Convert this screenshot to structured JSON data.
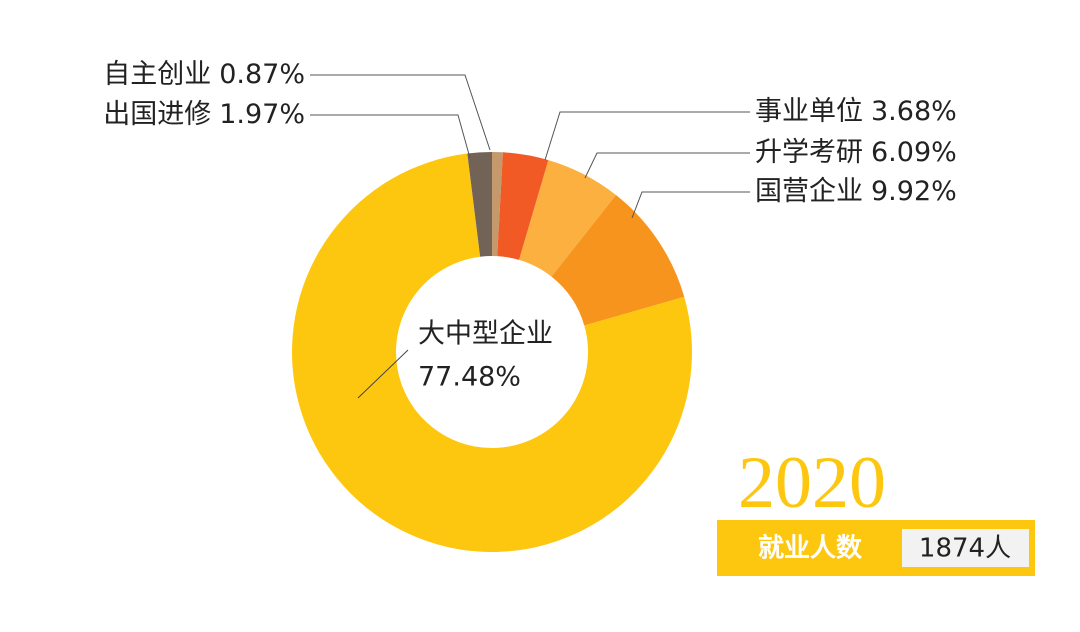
{
  "chart_data": {
    "type": "donut",
    "categories": [
      "自主创业",
      "事业单位",
      "升学考研",
      "国营企业",
      "大中型企业",
      "出国进修"
    ],
    "values": [
      0.87,
      3.68,
      6.09,
      9.92,
      77.48,
      1.97
    ],
    "value_labels": [
      "0.87%",
      "3.68%",
      "6.09%",
      "9.92%",
      "77.48%",
      "1.97%"
    ],
    "colors": [
      "#c49a6c",
      "#f15a24",
      "#fbb040",
      "#f7941d",
      "#fdc70f",
      "#736357"
    ]
  },
  "summary": {
    "year": "2020",
    "label": "就业人数",
    "count": "1874人"
  }
}
